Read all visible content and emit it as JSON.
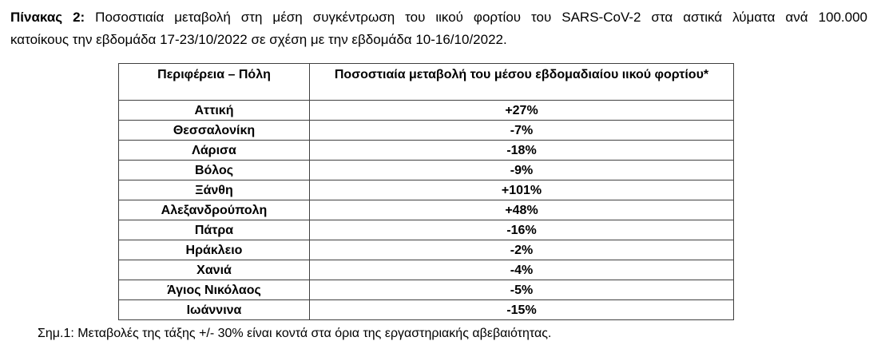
{
  "caption": {
    "bold_prefix": "Πίνακας 2:",
    "line1_rest": " Ποσοστιαία μεταβολή στη μέση συγκέντρωση του ιικού φορτίου του SARS-CoV-2 στα αστικά λύματα ανά 100.000",
    "line2": "κατοίκους την εβδομάδα 17-23/10/2022 σε σχέση με την εβδομάδα 10-16/10/2022."
  },
  "table": {
    "headers": [
      "Περιφέρεια – Πόλη",
      "Ποσοστιαία μεταβολή του μέσου εβδομαδιαίου ιικού φορτίου*"
    ],
    "rows": [
      {
        "region": "Αττική",
        "change": "+27%"
      },
      {
        "region": "Θεσσαλονίκη",
        "change": "-7%"
      },
      {
        "region": "Λάρισα",
        "change": "-18%"
      },
      {
        "region": "Βόλος",
        "change": "-9%"
      },
      {
        "region": "Ξάνθη",
        "change": "+101%"
      },
      {
        "region": "Αλεξανδρούπολη",
        "change": "+48%"
      },
      {
        "region": "Πάτρα",
        "change": "-16%"
      },
      {
        "region": "Ηράκλειο",
        "change": "-2%"
      },
      {
        "region": "Χανιά",
        "change": "-4%"
      },
      {
        "region": "Άγιος Νικόλαος",
        "change": "-5%"
      },
      {
        "region": "Ιωάννινα",
        "change": "-15%"
      }
    ]
  },
  "footnote": "Σημ.1: Μεταβολές της τάξης +/- 30% είναι κοντά στα όρια της εργαστηριακής αβεβαιότητας.",
  "colors": {
    "border": "#404040",
    "text": "#000000",
    "background": "#ffffff"
  }
}
